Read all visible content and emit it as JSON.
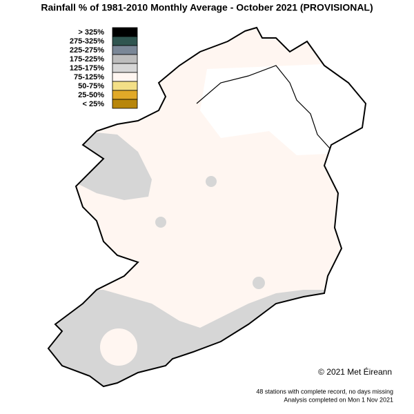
{
  "title": "Rainfall % of 1981-2010 Monthly Average - October 2021 (PROVISIONAL)",
  "legend": [
    {
      "label": "> 325%",
      "color": "#000000"
    },
    {
      "label": "275-325%",
      "color": "#2f5550"
    },
    {
      "label": "225-275%",
      "color": "#7a8797"
    },
    {
      "label": "175-225%",
      "color": "#bdbdbd"
    },
    {
      "label": "125-175%",
      "color": "#d6d6d6"
    },
    {
      "label": "75-125%",
      "color": "#fff6f1"
    },
    {
      "label": "50-75%",
      "color": "#f3df87"
    },
    {
      "label": "25-50%",
      "color": "#e1a928"
    },
    {
      "label": "< 25%",
      "color": "#b8860b"
    }
  ],
  "credit": "© 2021 Met Éireann",
  "notes": [
    "48 stations with complete record, no days missing",
    "Analysis completed on Mon  1 Nov 2021"
  ]
}
